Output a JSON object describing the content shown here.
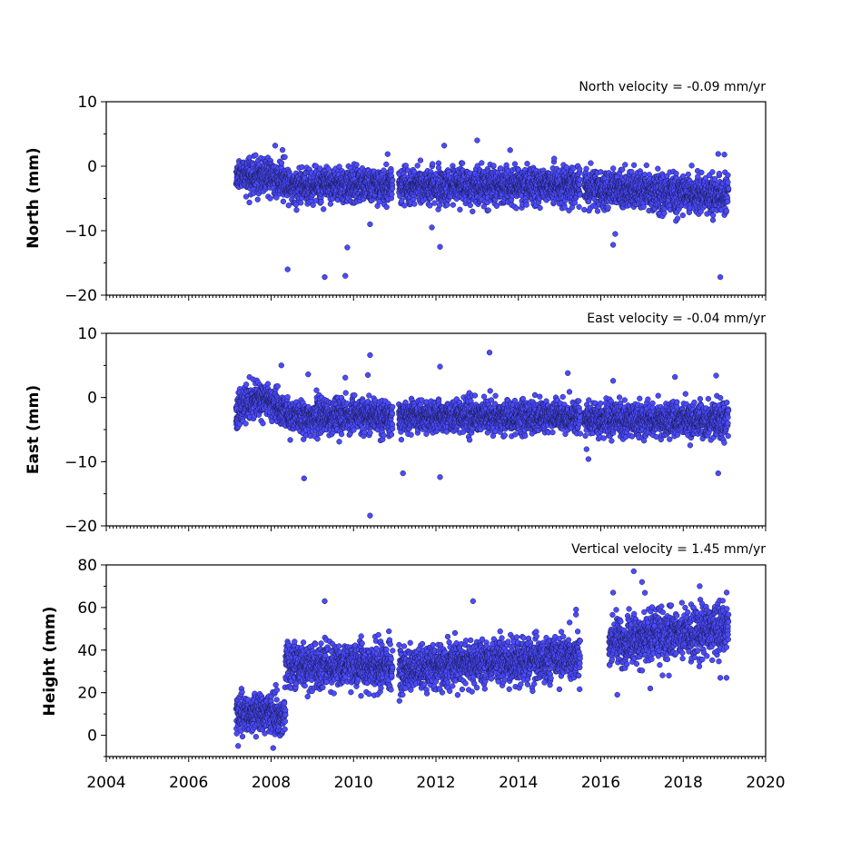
{
  "chart_data": [
    {
      "type": "scatter",
      "title": "North velocity = -0.09 mm/yr",
      "ylabel": "North (mm)",
      "xlim": [
        2004,
        2020
      ],
      "ylim": [
        -20,
        10
      ],
      "yticks": [
        10,
        0,
        -10,
        -20
      ],
      "yticklabels": [
        "10",
        "0",
        "−10",
        "−20"
      ],
      "marker_color": "#4b4bff",
      "segments": [
        {
          "start": 2007.15,
          "end": 2010.95,
          "trend": [
            [
              2007.15,
              -1.5
            ],
            [
              2008.0,
              -1.5
            ],
            [
              2008.5,
              -3.0
            ],
            [
              2010.95,
              -3.0
            ]
          ],
          "spread": 1.3
        },
        {
          "start": 2011.1,
          "end": 2015.5,
          "trend": [
            [
              2011.1,
              -3.0
            ],
            [
              2015.5,
              -3.0
            ]
          ],
          "spread": 1.3
        },
        {
          "start": 2015.6,
          "end": 2019.1,
          "trend": [
            [
              2015.6,
              -3.5
            ],
            [
              2019.1,
              -4.5
            ]
          ],
          "spread": 1.4
        }
      ],
      "outliers": [
        [
          2008.4,
          -16
        ],
        [
          2009.3,
          -17.2
        ],
        [
          2009.8,
          -17
        ],
        [
          2009.85,
          -12.6
        ],
        [
          2012.1,
          -12.5
        ],
        [
          2016.3,
          -12.2
        ],
        [
          2016.35,
          -10.5
        ],
        [
          2018.9,
          -17.2
        ],
        [
          2008.1,
          3.2
        ],
        [
          2012.2,
          3.2
        ],
        [
          2013.0,
          4.0
        ],
        [
          2013.8,
          2.5
        ],
        [
          2018.85,
          1.9
        ],
        [
          2019.0,
          1.8
        ],
        [
          2011.9,
          -9.5
        ],
        [
          2010.4,
          -9.0
        ]
      ]
    },
    {
      "type": "scatter",
      "title": "East velocity = -0.04 mm/yr",
      "ylabel": "East (mm)",
      "xlim": [
        2004,
        2020
      ],
      "ylim": [
        -20,
        10
      ],
      "yticks": [
        10,
        0,
        -10,
        -20
      ],
      "yticklabels": [
        "10",
        "0",
        "−10",
        "−20"
      ],
      "marker_color": "#4b4bff",
      "segments": [
        {
          "start": 2007.15,
          "end": 2010.95,
          "trend": [
            [
              2007.15,
              -2.0
            ],
            [
              2007.7,
              0.0
            ],
            [
              2008.1,
              -1.0
            ],
            [
              2008.4,
              -3.0
            ],
            [
              2010.95,
              -3.0
            ]
          ],
          "spread": 1.3
        },
        {
          "start": 2011.1,
          "end": 2015.5,
          "trend": [
            [
              2011.1,
              -3.0
            ],
            [
              2015.5,
              -3.0
            ]
          ],
          "spread": 1.2
        },
        {
          "start": 2015.6,
          "end": 2019.1,
          "trend": [
            [
              2015.6,
              -3.5
            ],
            [
              2019.1,
              -3.5
            ]
          ],
          "spread": 1.3
        }
      ],
      "outliers": [
        [
          2008.25,
          5.0
        ],
        [
          2008.8,
          -12.6
        ],
        [
          2010.4,
          6.6
        ],
        [
          2010.35,
          3.5
        ],
        [
          2010.4,
          -18.4
        ],
        [
          2011.2,
          -11.8
        ],
        [
          2012.1,
          -12.4
        ],
        [
          2012.1,
          4.8
        ],
        [
          2013.3,
          7.0
        ],
        [
          2015.2,
          3.8
        ],
        [
          2016.3,
          2.6
        ],
        [
          2017.8,
          3.2
        ],
        [
          2018.8,
          3.4
        ],
        [
          2018.85,
          -11.8
        ],
        [
          2009.8,
          3.1
        ],
        [
          2008.9,
          3.6
        ],
        [
          2015.7,
          -9.6
        ]
      ]
    },
    {
      "type": "scatter",
      "title": "Vertical velocity = 1.45 mm/yr",
      "ylabel": "Height (mm)",
      "xlim": [
        2004,
        2020
      ],
      "ylim": [
        -10,
        80
      ],
      "yticks": [
        80,
        60,
        40,
        20,
        0
      ],
      "yticklabels": [
        "80",
        "60",
        "40",
        "20",
        "0"
      ],
      "marker_color": "#4b4bff",
      "segments": [
        {
          "start": 2007.15,
          "end": 2008.35,
          "trend": [
            [
              2007.15,
              10
            ],
            [
              2008.35,
              10
            ]
          ],
          "spread": 4.5
        },
        {
          "start": 2008.35,
          "end": 2010.95,
          "trend": [
            [
              2008.35,
              33
            ],
            [
              2010.95,
              32
            ]
          ],
          "spread": 5.0
        },
        {
          "start": 2011.1,
          "end": 2015.5,
          "trend": [
            [
              2011.1,
              31
            ],
            [
              2015.5,
              37
            ]
          ],
          "spread": 5.0
        },
        {
          "start": 2016.2,
          "end": 2019.1,
          "trend": [
            [
              2016.2,
              44
            ],
            [
              2019.1,
              50
            ]
          ],
          "spread": 5.5
        }
      ],
      "outliers": [
        [
          2009.3,
          63
        ],
        [
          2012.9,
          63
        ],
        [
          2015.4,
          59
        ],
        [
          2016.8,
          77
        ],
        [
          2017.0,
          72
        ],
        [
          2018.4,
          70
        ],
        [
          2016.3,
          67
        ],
        [
          2007.2,
          -5
        ],
        [
          2008.05,
          -6
        ],
        [
          2016.4,
          19
        ],
        [
          2017.2,
          22
        ],
        [
          2018.9,
          27
        ],
        [
          2019.05,
          27
        ]
      ]
    }
  ],
  "x_axis": {
    "tick_values": [
      2004,
      2006,
      2008,
      2010,
      2012,
      2014,
      2016,
      2018,
      2020
    ],
    "tick_labels": [
      "2004",
      "2006",
      "2008",
      "2010",
      "2012",
      "2014",
      "2016",
      "2018",
      "2020"
    ]
  }
}
